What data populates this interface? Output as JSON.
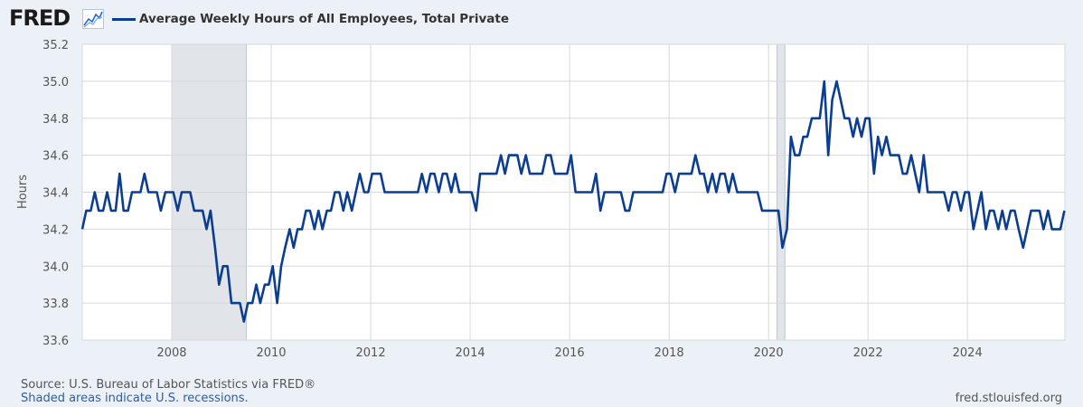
{
  "header": {
    "logo_text": "FRED",
    "logo_icon": "line-chart-icon",
    "legend_label": "Average Weekly Hours of All Employees, Total Private",
    "line_color": "#0b3d91"
  },
  "footer": {
    "source": "Source: U.S. Bureau of Labor Statistics via FRED®",
    "note": "Shaded areas indicate U.S. recessions.",
    "site": "fred.stlouisfed.org"
  },
  "chart_data": {
    "type": "line",
    "ylabel": "Hours",
    "ylim": [
      33.6,
      35.2
    ],
    "yticks": [
      33.6,
      33.8,
      34.0,
      34.2,
      34.4,
      34.6,
      34.8,
      35.0,
      35.2
    ],
    "xlim": [
      2006.2,
      2025.96
    ],
    "xticks": [
      2008,
      2010,
      2012,
      2014,
      2016,
      2018,
      2020,
      2022,
      2024
    ],
    "grid": true,
    "recessions": [
      [
        2008.0,
        2009.5
      ],
      [
        2020.17,
        2020.33
      ]
    ],
    "series": [
      {
        "name": "Average Weekly Hours of All Employees, Total Private",
        "x": [
          2006.2,
          2006.28,
          2006.37,
          2006.45,
          2006.53,
          2006.62,
          2006.7,
          2006.78,
          2006.87,
          2006.95,
          2007.03,
          2007.12,
          2007.2,
          2007.28,
          2007.37,
          2007.45,
          2007.53,
          2007.62,
          2007.7,
          2007.78,
          2007.87,
          2007.95,
          2008.03,
          2008.12,
          2008.2,
          2008.28,
          2008.37,
          2008.45,
          2008.53,
          2008.62,
          2008.7,
          2008.78,
          2008.87,
          2008.95,
          2009.03,
          2009.12,
          2009.2,
          2009.28,
          2009.37,
          2009.45,
          2009.53,
          2009.62,
          2009.7,
          2009.78,
          2009.87,
          2009.95,
          2010.03,
          2010.12,
          2010.2,
          2010.28,
          2010.37,
          2010.45,
          2010.53,
          2010.62,
          2010.7,
          2010.78,
          2010.87,
          2010.95,
          2011.03,
          2011.12,
          2011.2,
          2011.28,
          2011.37,
          2011.45,
          2011.53,
          2011.62,
          2011.7,
          2011.78,
          2011.87,
          2011.95,
          2012.03,
          2012.12,
          2012.2,
          2012.28,
          2012.37,
          2012.45,
          2012.53,
          2012.62,
          2012.7,
          2012.78,
          2012.87,
          2012.95,
          2013.03,
          2013.12,
          2013.2,
          2013.28,
          2013.37,
          2013.45,
          2013.53,
          2013.62,
          2013.7,
          2013.78,
          2013.87,
          2013.95,
          2014.03,
          2014.12,
          2014.2,
          2014.28,
          2014.37,
          2014.45,
          2014.53,
          2014.62,
          2014.7,
          2014.78,
          2014.87,
          2014.95,
          2015.03,
          2015.12,
          2015.2,
          2015.28,
          2015.37,
          2015.45,
          2015.53,
          2015.62,
          2015.7,
          2015.78,
          2015.87,
          2015.95,
          2016.03,
          2016.12,
          2016.2,
          2016.28,
          2016.37,
          2016.45,
          2016.53,
          2016.62,
          2016.7,
          2016.78,
          2016.87,
          2016.95,
          2017.03,
          2017.12,
          2017.2,
          2017.28,
          2017.37,
          2017.45,
          2017.53,
          2017.62,
          2017.7,
          2017.78,
          2017.87,
          2017.95,
          2018.03,
          2018.12,
          2018.2,
          2018.28,
          2018.37,
          2018.45,
          2018.53,
          2018.62,
          2018.7,
          2018.78,
          2018.87,
          2018.95,
          2019.03,
          2019.12,
          2019.2,
          2019.28,
          2019.37,
          2019.45,
          2019.53,
          2019.62,
          2019.7,
          2019.78,
          2019.87,
          2019.95,
          2020.03,
          2020.12,
          2020.2,
          2020.28,
          2020.37,
          2020.45,
          2020.53,
          2020.62,
          2020.7,
          2020.78,
          2020.87,
          2020.95,
          2021.03,
          2021.12,
          2021.2,
          2021.28,
          2021.37,
          2021.45,
          2021.53,
          2021.62,
          2021.7,
          2021.78,
          2021.87,
          2021.95,
          2022.03,
          2022.12,
          2022.2,
          2022.28,
          2022.37,
          2022.45,
          2022.53,
          2022.62,
          2022.7,
          2022.78,
          2022.87,
          2022.95,
          2023.03,
          2023.12,
          2023.2,
          2023.28,
          2023.37,
          2023.45,
          2023.53,
          2023.62,
          2023.7,
          2023.78,
          2023.87,
          2023.95,
          2024.03,
          2024.12,
          2024.2,
          2024.28,
          2024.37,
          2024.45,
          2024.53,
          2024.62,
          2024.7,
          2024.78,
          2024.87,
          2024.95,
          2025.03,
          2025.12,
          2025.2,
          2025.28,
          2025.37,
          2025.45,
          2025.53,
          2025.62,
          2025.7,
          2025.78,
          2025.87,
          2025.95
        ],
        "values": [
          34.2,
          34.3,
          34.3,
          34.4,
          34.3,
          34.3,
          34.4,
          34.3,
          34.3,
          34.5,
          34.3,
          34.3,
          34.4,
          34.4,
          34.4,
          34.5,
          34.4,
          34.4,
          34.4,
          34.3,
          34.4,
          34.4,
          34.4,
          34.3,
          34.4,
          34.4,
          34.4,
          34.3,
          34.3,
          34.3,
          34.2,
          34.3,
          34.1,
          33.9,
          34.0,
          34.0,
          33.8,
          33.8,
          33.8,
          33.7,
          33.8,
          33.8,
          33.9,
          33.8,
          33.9,
          33.9,
          34.0,
          33.8,
          34.0,
          34.1,
          34.2,
          34.1,
          34.2,
          34.2,
          34.3,
          34.3,
          34.2,
          34.3,
          34.2,
          34.3,
          34.3,
          34.4,
          34.4,
          34.3,
          34.4,
          34.3,
          34.4,
          34.5,
          34.4,
          34.4,
          34.5,
          34.5,
          34.5,
          34.4,
          34.4,
          34.4,
          34.4,
          34.4,
          34.4,
          34.4,
          34.4,
          34.4,
          34.5,
          34.4,
          34.5,
          34.5,
          34.4,
          34.5,
          34.5,
          34.4,
          34.5,
          34.4,
          34.4,
          34.4,
          34.4,
          34.3,
          34.5,
          34.5,
          34.5,
          34.5,
          34.5,
          34.6,
          34.5,
          34.6,
          34.6,
          34.6,
          34.5,
          34.6,
          34.5,
          34.5,
          34.5,
          34.5,
          34.6,
          34.6,
          34.5,
          34.5,
          34.5,
          34.5,
          34.6,
          34.4,
          34.4,
          34.4,
          34.4,
          34.4,
          34.5,
          34.3,
          34.4,
          34.4,
          34.4,
          34.4,
          34.4,
          34.3,
          34.3,
          34.4,
          34.4,
          34.4,
          34.4,
          34.4,
          34.4,
          34.4,
          34.4,
          34.5,
          34.5,
          34.4,
          34.5,
          34.5,
          34.5,
          34.5,
          34.6,
          34.5,
          34.5,
          34.4,
          34.5,
          34.4,
          34.5,
          34.5,
          34.4,
          34.5,
          34.4,
          34.4,
          34.4,
          34.4,
          34.4,
          34.4,
          34.3,
          34.3,
          34.3,
          34.3,
          34.3,
          34.1,
          34.2,
          34.7,
          34.6,
          34.6,
          34.7,
          34.7,
          34.8,
          34.8,
          34.8,
          35.0,
          34.6,
          34.9,
          35.0,
          34.9,
          34.8,
          34.8,
          34.7,
          34.8,
          34.7,
          34.8,
          34.8,
          34.5,
          34.7,
          34.6,
          34.7,
          34.6,
          34.6,
          34.6,
          34.5,
          34.5,
          34.6,
          34.5,
          34.4,
          34.6,
          34.4,
          34.4,
          34.4,
          34.4,
          34.4,
          34.3,
          34.4,
          34.4,
          34.3,
          34.4,
          34.4,
          34.2,
          34.3,
          34.4,
          34.2,
          34.3,
          34.3,
          34.2,
          34.3,
          34.2,
          34.3,
          34.3,
          34.2,
          34.1,
          34.2,
          34.3,
          34.3,
          34.3,
          34.2,
          34.3,
          34.2,
          34.2,
          34.2,
          34.3
        ]
      }
    ]
  }
}
